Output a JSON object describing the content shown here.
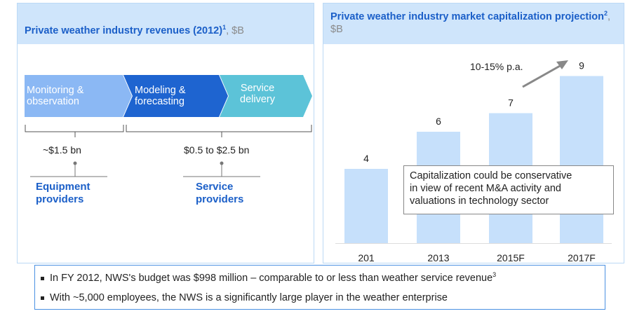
{
  "left_panel": {
    "title": "Private weather industry revenues (2012)",
    "title_sup": "1",
    "unit": ", $B",
    "chevrons": [
      {
        "line1": "Monitoring &",
        "line2": "observation"
      },
      {
        "line1": "Modeling &",
        "line2": "forecasting"
      },
      {
        "line1": "Service",
        "line2": "delivery"
      }
    ],
    "colors": {
      "chevron1": "#8bb8f4",
      "chevron2": "#1e64d0",
      "chevron3": "#5cc3d8",
      "header_bg": "#cfe5fb",
      "title": "#1b5fc8"
    },
    "groups": [
      {
        "value": "~$1.5 bn",
        "label_line1": "Equipment",
        "label_line2": "providers"
      },
      {
        "value": "$0.5 to $2.5 bn",
        "label_line1": "Service",
        "label_line2": "providers"
      }
    ]
  },
  "chart_data": {
    "type": "bar",
    "title": "Private weather industry market capitalization projection",
    "title_sup": "2",
    "unit": ", $B",
    "categories": [
      "201",
      "2013",
      "2015F",
      "2017F"
    ],
    "values": [
      4,
      6,
      7,
      9
    ],
    "bar_color": "#c6e0fb",
    "ylim": [
      0,
      10
    ],
    "annotation_growth": "10-15% p.a.",
    "note": [
      "Capitalization could be conservative",
      "in view of recent M&A activity and",
      "valuations in technology sector"
    ]
  },
  "bullets": {
    "line1": "In FY 2012, NWS's budget was $998 million – comparable to or less than weather service revenue",
    "line1_sup": "3",
    "line2": "With ~5,000 employees, the NWS is a significantly large player in the weather enterprise"
  }
}
